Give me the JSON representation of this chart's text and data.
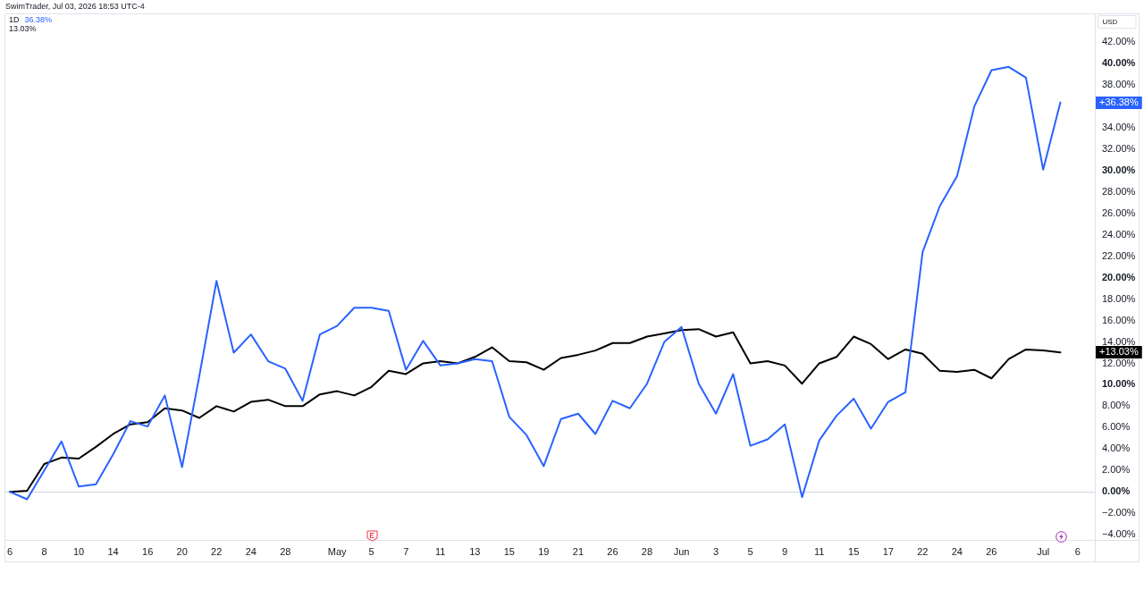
{
  "chart_data": {
    "type": "line",
    "annotations": [
      "SwimTrader, Jul 03, 2026 18:53 UTC-4",
      "1D",
      "36.38%",
      "13.03%",
      "USD",
      "+36.38%",
      "+13.03%"
    ],
    "categories": [
      "6",
      null,
      "8",
      null,
      "10",
      null,
      "14",
      null,
      "16",
      null,
      "20",
      null,
      "22",
      null,
      "24",
      null,
      "28",
      null,
      null,
      "May",
      null,
      "5",
      null,
      "7",
      null,
      "11",
      null,
      "13",
      null,
      "15",
      null,
      "19",
      null,
      "21",
      null,
      "26",
      null,
      "28",
      null,
      "Jun",
      null,
      "3",
      null,
      "5",
      null,
      "9",
      null,
      "11",
      null,
      "15",
      null,
      "17",
      null,
      "22",
      null,
      "24",
      null,
      "26",
      null,
      null,
      "Jul",
      null,
      "6",
      null
    ],
    "series": [
      {
        "color": "#2962ff",
        "values": [
          0,
          -0.7,
          2.0,
          4.7,
          0.5,
          0.7,
          3.5,
          6.6,
          6.1,
          9.0,
          2.3,
          10.8,
          19.7,
          13.0,
          14.7,
          12.2,
          11.5,
          8.5,
          14.7,
          15.5,
          17.2,
          17.2,
          16.9,
          11.4,
          14.1,
          11.8,
          12.0,
          12.4,
          12.2,
          7.0,
          5.3,
          2.4,
          6.8,
          7.3,
          5.4,
          8.5,
          7.8,
          10.1,
          14.0,
          15.4,
          10.1,
          7.3,
          11.0,
          4.3,
          4.9,
          6.3,
          -0.5,
          4.8,
          7.1,
          8.7,
          5.9,
          8.4,
          9.3,
          22.4,
          26.7,
          29.5,
          36.0,
          39.4,
          39.7,
          38.7,
          30.1,
          36.38,
          null,
          null
        ]
      },
      {
        "color": "#000000",
        "values": [
          0,
          0.1,
          2.6,
          3.2,
          3.1,
          4.2,
          5.4,
          6.3,
          6.5,
          7.8,
          7.6,
          6.9,
          8.0,
          7.5,
          8.4,
          8.6,
          8.0,
          8.0,
          9.1,
          9.4,
          9.0,
          9.8,
          11.3,
          11.0,
          12.0,
          12.2,
          12.0,
          12.6,
          13.5,
          12.2,
          12.1,
          11.4,
          12.5,
          12.8,
          13.2,
          13.9,
          13.9,
          14.5,
          14.8,
          15.1,
          15.2,
          14.5,
          14.9,
          12.0,
          12.2,
          11.8,
          10.1,
          12.0,
          12.6,
          14.5,
          13.8,
          12.4,
          13.3,
          12.9,
          11.3,
          11.2,
          11.4,
          10.6,
          12.4,
          13.3,
          13.2,
          13.03,
          null,
          null
        ]
      }
    ],
    "ylim": [
      -4.5,
      44.7
    ],
    "yticks": [
      {
        "value": -4,
        "label": "−4.00%"
      },
      {
        "value": -2,
        "label": "−2.00%"
      },
      {
        "value": 0,
        "label": "0.00%"
      },
      {
        "value": 2,
        "label": "2.00%"
      },
      {
        "value": 4,
        "label": "4.00%"
      },
      {
        "value": 6,
        "label": "6.00%"
      },
      {
        "value": 8,
        "label": "8.00%"
      },
      {
        "value": 10,
        "label": "10.00%"
      },
      {
        "value": 12,
        "label": "12.00%"
      },
      {
        "value": 14,
        "label": "14.00%"
      },
      {
        "value": 16,
        "label": "16.00%"
      },
      {
        "value": 18,
        "label": "18.00%"
      },
      {
        "value": 20,
        "label": "20.00%"
      },
      {
        "value": 22,
        "label": "22.00%"
      },
      {
        "value": 24,
        "label": "24.00%"
      },
      {
        "value": 26,
        "label": "26.00%"
      },
      {
        "value": 28,
        "label": "28.00%"
      },
      {
        "value": 30,
        "label": "30.00%"
      },
      {
        "value": 32,
        "label": "32.00%"
      },
      {
        "value": 34,
        "label": "34.00%"
      },
      {
        "value": 38,
        "label": "38.00%"
      },
      {
        "value": 40,
        "label": "40.00%"
      },
      {
        "value": 42,
        "label": "42.00%"
      }
    ],
    "ref_lines": [
      {
        "axis": "y",
        "value": 0,
        "color": "#d1d4dc"
      }
    ]
  }
}
